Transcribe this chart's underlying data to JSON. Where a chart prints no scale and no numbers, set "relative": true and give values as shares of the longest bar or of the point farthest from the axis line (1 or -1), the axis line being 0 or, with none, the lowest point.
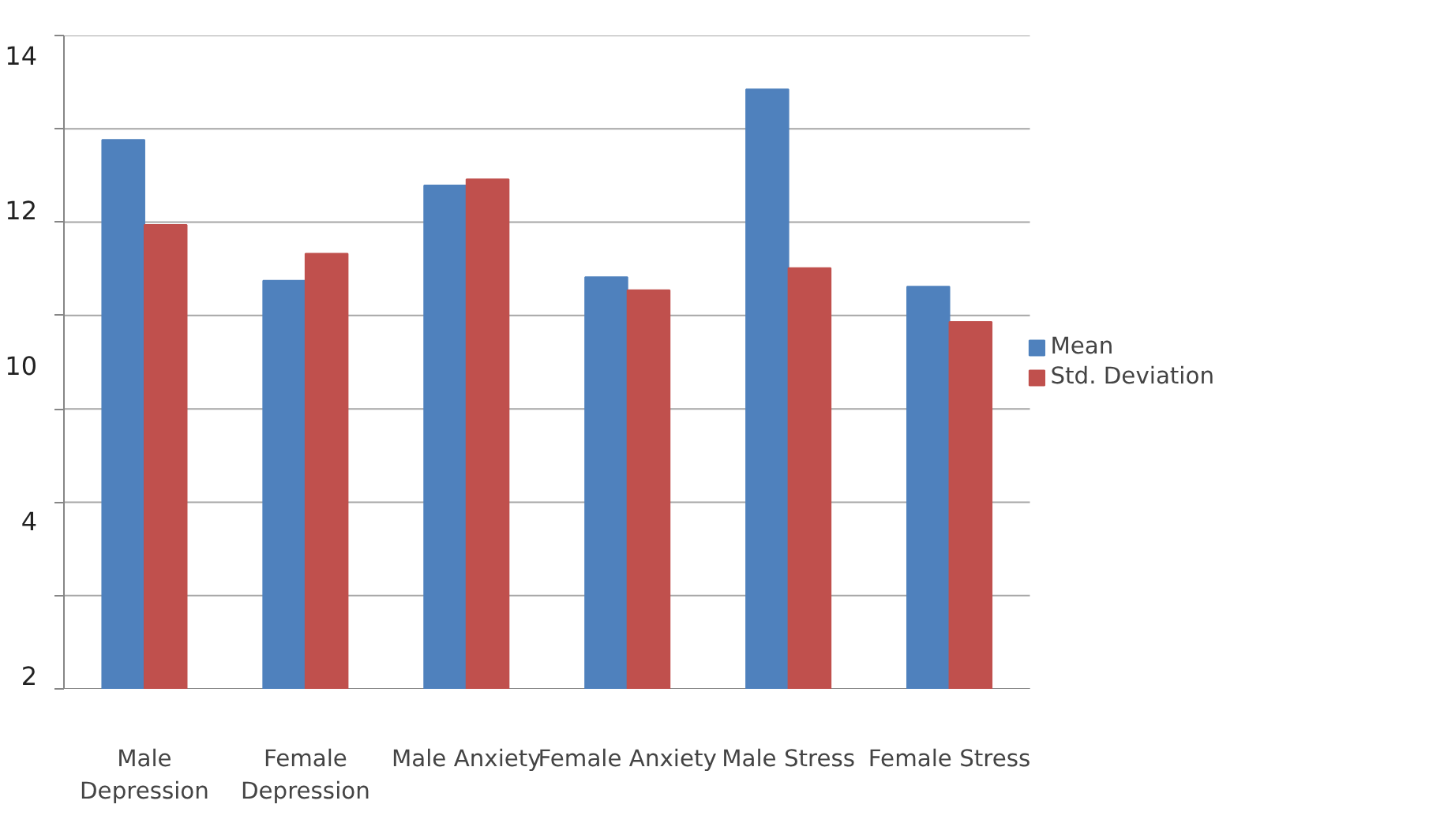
{
  "chart_data": {
    "type": "bar",
    "categories": [
      "Male Depression",
      "Female Depression",
      "Male Anxiety",
      "Female Anxiety",
      "Male Stress",
      "Female Stress"
    ],
    "series": [
      {
        "name": "Mean",
        "color": "#4f81bd",
        "values": [
          0.916,
          0.681,
          0.84,
          0.687,
          1,
          0.671
        ]
      },
      {
        "name": "Std. Deviation",
        "color": "#c0504d",
        "values": [
          0.774,
          0.726,
          0.85,
          0.665,
          0.702,
          0.612
        ]
      }
    ],
    "relative": true,
    "annotations": [
      "14",
      "12",
      "10",
      "4",
      "2"
    ],
    "grid": "y",
    "legend": "right"
  }
}
